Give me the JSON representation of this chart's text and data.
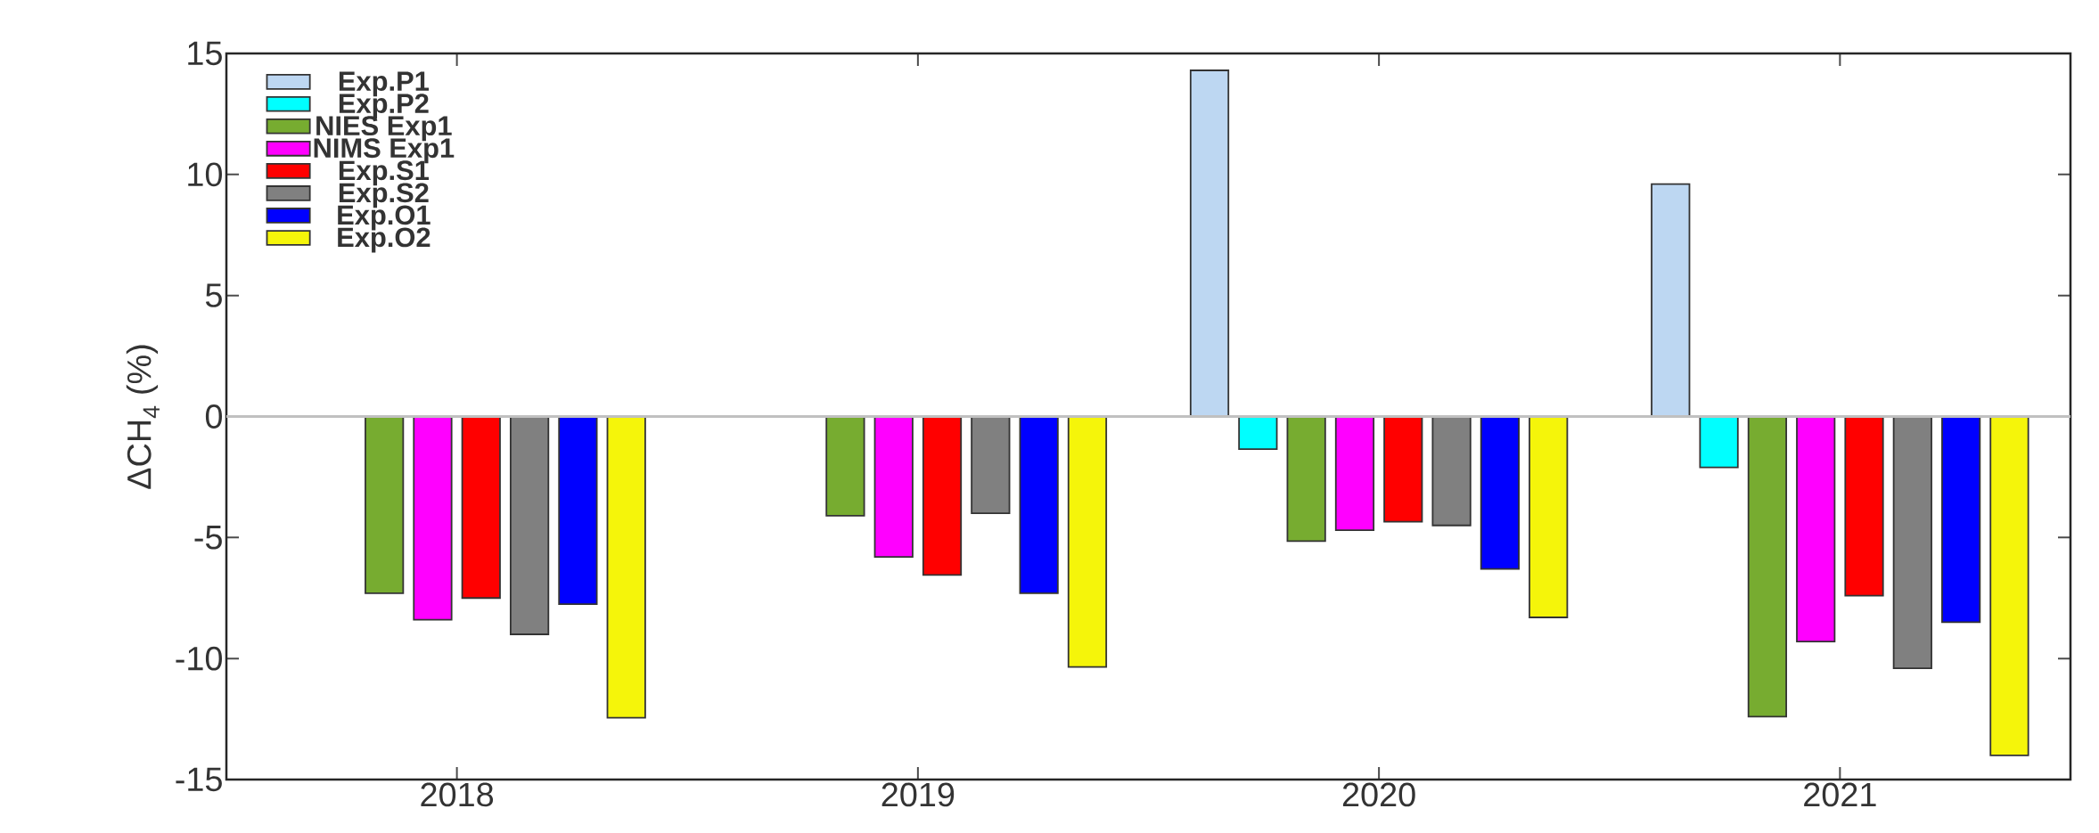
{
  "chart_data": {
    "type": "bar",
    "ylabel": "ΔCH$_{4}$ (%)",
    "categories": [
      "2018",
      "2019",
      "2020",
      "2021"
    ],
    "series": [
      {
        "name": "Exp.P1",
        "color": "#bdd7f2",
        "values": [
          null,
          null,
          14.3,
          9.6
        ]
      },
      {
        "name": "Exp.P2",
        "color": "#00ffff",
        "values": [
          null,
          null,
          -1.35,
          -2.1
        ]
      },
      {
        "name": "NIES Exp1",
        "color": "#77ac30",
        "values": [
          -7.3,
          -4.1,
          -5.15,
          -12.4
        ]
      },
      {
        "name": "NIMS Exp1",
        "color": "#ff00ff",
        "values": [
          -8.4,
          -5.8,
          -4.7,
          -9.3
        ]
      },
      {
        "name": "Exp.S1",
        "color": "#ff0000",
        "values": [
          -7.5,
          -6.55,
          -4.35,
          -7.4
        ]
      },
      {
        "name": "Exp.S2",
        "color": "#808080",
        "values": [
          -9.0,
          -4.0,
          -4.5,
          -10.4
        ]
      },
      {
        "name": "Exp.O1",
        "color": "#0000ff",
        "values": [
          -7.75,
          -7.3,
          -6.3,
          -8.5
        ]
      },
      {
        "name": "Exp.O2",
        "color": "#f5f50a",
        "values": [
          -12.45,
          -10.35,
          -8.3,
          -14.0
        ]
      }
    ],
    "ylim": [
      -15,
      15
    ],
    "yticks": [
      -15,
      -10,
      -5,
      0,
      5,
      10,
      15
    ],
    "ref_lines": [
      {
        "axis": "y",
        "value": 0,
        "color": "#c0c0c0"
      }
    ],
    "legend": "top left",
    "grid": false
  }
}
